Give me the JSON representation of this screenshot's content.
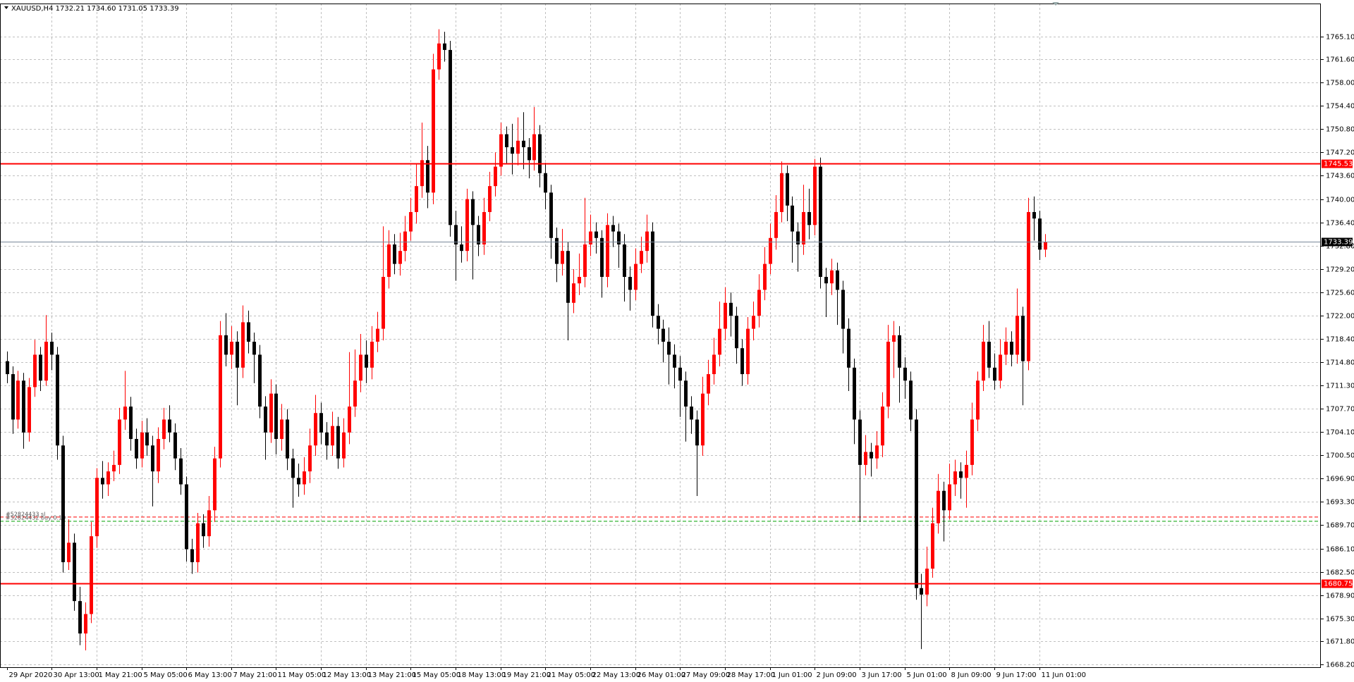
{
  "chart_data": {
    "type": "candlestick",
    "header": "XAUUSD,H4  1732.21 1734.60 1731.05 1733.39",
    "up_color": "#ff0000",
    "down_color": "#000000",
    "grid": true,
    "ylim": [
      1667.8,
      1770.16
    ],
    "xlim": [
      -1.2,
      234.2
    ],
    "yticks": [
      {
        "value": 1765.1,
        "label": "1765.10"
      },
      {
        "value": 1761.6,
        "label": "1761.60"
      },
      {
        "value": 1758,
        "label": "1758.00"
      },
      {
        "value": 1754.4,
        "label": "1754.40"
      },
      {
        "value": 1750.8,
        "label": "1750.80"
      },
      {
        "value": 1747.2,
        "label": "1747.20"
      },
      {
        "value": 1743.6,
        "label": "1743.60"
      },
      {
        "value": 1740,
        "label": "1740.00"
      },
      {
        "value": 1736.4,
        "label": "1736.40"
      },
      {
        "value": 1732.8,
        "label": "1732.80"
      },
      {
        "value": 1729.2,
        "label": "1729.20"
      },
      {
        "value": 1725.6,
        "label": "1725.60"
      },
      {
        "value": 1722,
        "label": "1722.00"
      },
      {
        "value": 1718.4,
        "label": "1718.40"
      },
      {
        "value": 1714.8,
        "label": "1714.80"
      },
      {
        "value": 1711.3,
        "label": "1711.30"
      },
      {
        "value": 1707.7,
        "label": "1707.70"
      },
      {
        "value": 1704.1,
        "label": "1704.10"
      },
      {
        "value": 1700.5,
        "label": "1700.50"
      },
      {
        "value": 1696.9,
        "label": "1696.90"
      },
      {
        "value": 1693.3,
        "label": "1693.30"
      },
      {
        "value": 1689.7,
        "label": "1689.70"
      },
      {
        "value": 1686.1,
        "label": "1686.10"
      },
      {
        "value": 1682.5,
        "label": "1682.50"
      },
      {
        "value": 1678.9,
        "label": "1678.90"
      },
      {
        "value": 1675.3,
        "label": "1675.30"
      },
      {
        "value": 1671.8,
        "label": "1671.80"
      },
      {
        "value": 1668.2,
        "label": "1668.20"
      }
    ],
    "xticks": [
      {
        "value": 0,
        "label": "29 Apr 2020"
      },
      {
        "value": 8,
        "label": "30 Apr 13:00"
      },
      {
        "value": 16,
        "label": "1 May 21:00"
      },
      {
        "value": 24,
        "label": "5 May 05:00"
      },
      {
        "value": 32,
        "label": "6 May 13:00"
      },
      {
        "value": 40,
        "label": "7 May 21:00"
      },
      {
        "value": 48,
        "label": "11 May 05:00"
      },
      {
        "value": 56,
        "label": "12 May 13:00"
      },
      {
        "value": 64,
        "label": "13 May 21:00"
      },
      {
        "value": 72,
        "label": "15 May 05:00"
      },
      {
        "value": 80,
        "label": "18 May 13:00"
      },
      {
        "value": 88,
        "label": "19 May 21:00"
      },
      {
        "value": 96,
        "label": "21 May 05:00"
      },
      {
        "value": 104,
        "label": "22 May 13:00"
      },
      {
        "value": 112,
        "label": "26 May 01:00"
      },
      {
        "value": 120,
        "label": "27 May 09:00"
      },
      {
        "value": 128,
        "label": "28 May 17:00"
      },
      {
        "value": 136,
        "label": "1 Jun 01:00"
      },
      {
        "value": 144,
        "label": "2 Jun 09:00"
      },
      {
        "value": 152,
        "label": "3 Jun 17:00"
      },
      {
        "value": 160,
        "label": "5 Jun 01:00"
      },
      {
        "value": 168,
        "label": "8 Jun 09:00"
      },
      {
        "value": 176,
        "label": "9 Jun 17:00"
      },
      {
        "value": 184,
        "label": "11 Jun 01:00"
      }
    ],
    "levels": [
      {
        "value": 1745.53,
        "color": "#ff0000"
      },
      {
        "value": 1680.75,
        "color": "#ff0000"
      }
    ],
    "bid": {
      "value": 1733.39,
      "color": "#778899"
    },
    "orders": [
      {
        "label": "#52824433 sl",
        "value": 1690.96,
        "color": "#ff0000"
      },
      {
        "label": "#52824432 buy 0.10",
        "value": 1690.3,
        "color": "#00a000"
      }
    ],
    "candles": [
      [
        1715,
        1716.5,
        1711.6,
        1713
      ],
      [
        1713,
        1714.2,
        1703.8,
        1706
      ],
      [
        1706,
        1713.5,
        1704.6,
        1712
      ],
      [
        1712,
        1713.2,
        1701.5,
        1704
      ],
      [
        1704,
        1712.4,
        1702.6,
        1711
      ],
      [
        1711,
        1718.3,
        1709.5,
        1716
      ],
      [
        1716,
        1717.2,
        1710.4,
        1712
      ],
      [
        1712,
        1722.1,
        1711.2,
        1718
      ],
      [
        1718,
        1719.4,
        1713.6,
        1716
      ],
      [
        1716,
        1717.2,
        1699.8,
        1702
      ],
      [
        1702,
        1703.5,
        1682.4,
        1684
      ],
      [
        1684,
        1690.6,
        1682.8,
        1687
      ],
      [
        1687,
        1688.4,
        1676.5,
        1678
      ],
      [
        1678,
        1680.2,
        1671.2,
        1673
      ],
      [
        1673,
        1677.8,
        1670.4,
        1676
      ],
      [
        1676,
        1690.2,
        1674.6,
        1688
      ],
      [
        1688,
        1698.5,
        1686.2,
        1697
      ],
      [
        1697,
        1699.6,
        1693.8,
        1696
      ],
      [
        1696,
        1699.4,
        1694.2,
        1698
      ],
      [
        1698,
        1701.2,
        1696.5,
        1699
      ],
      [
        1699,
        1707.8,
        1697.6,
        1706
      ],
      [
        1706,
        1713.5,
        1704.4,
        1708
      ],
      [
        1708,
        1709.5,
        1701.2,
        1703
      ],
      [
        1703,
        1704.6,
        1698.4,
        1700
      ],
      [
        1700,
        1705.8,
        1698.6,
        1704
      ],
      [
        1704,
        1706.2,
        1700.4,
        1702
      ],
      [
        1702,
        1703.5,
        1692.6,
        1698
      ],
      [
        1698,
        1704.8,
        1696.2,
        1703
      ],
      [
        1703,
        1707.8,
        1701.4,
        1706
      ],
      [
        1706,
        1708.2,
        1702.5,
        1704
      ],
      [
        1704,
        1705.4,
        1698.2,
        1700
      ],
      [
        1700,
        1701.6,
        1694.4,
        1696
      ],
      [
        1696,
        1697.2,
        1684.1,
        1686
      ],
      [
        1686,
        1687.6,
        1682.2,
        1684
      ],
      [
        1684,
        1691.6,
        1682.4,
        1690
      ],
      [
        1690,
        1691.4,
        1686.2,
        1688
      ],
      [
        1688,
        1694.2,
        1686.4,
        1692
      ],
      [
        1692,
        1701.8,
        1690.2,
        1700
      ],
      [
        1700,
        1721.2,
        1698.6,
        1719
      ],
      [
        1719,
        1722.4,
        1714.2,
        1716
      ],
      [
        1716,
        1720.4,
        1713.8,
        1718
      ],
      [
        1718,
        1719.6,
        1708.2,
        1714
      ],
      [
        1714,
        1723.6,
        1712.4,
        1721
      ],
      [
        1721,
        1722.8,
        1716.2,
        1718
      ],
      [
        1718,
        1719.4,
        1711.6,
        1716
      ],
      [
        1716,
        1717.5,
        1706.2,
        1708
      ],
      [
        1708,
        1709.6,
        1699.8,
        1704
      ],
      [
        1704,
        1712.2,
        1702.4,
        1710
      ],
      [
        1710,
        1711.4,
        1700.6,
        1703
      ],
      [
        1703,
        1708.4,
        1701.2,
        1706
      ],
      [
        1706,
        1707.6,
        1698.2,
        1700
      ],
      [
        1700,
        1701.5,
        1692.4,
        1697
      ],
      [
        1697,
        1699.2,
        1694.1,
        1696
      ],
      [
        1696,
        1700.2,
        1694.4,
        1698
      ],
      [
        1698,
        1704.6,
        1696.2,
        1702
      ],
      [
        1702,
        1709.8,
        1700.4,
        1707
      ],
      [
        1707,
        1708.6,
        1702.2,
        1704
      ],
      [
        1704,
        1705.6,
        1699.8,
        1702
      ],
      [
        1702,
        1707.2,
        1700.4,
        1705
      ],
      [
        1705,
        1706.4,
        1698.4,
        1700
      ],
      [
        1700,
        1706.2,
        1698.6,
        1704
      ],
      [
        1704,
        1716.4,
        1702.2,
        1708
      ],
      [
        1708,
        1716.8,
        1706.4,
        1712
      ],
      [
        1712,
        1719.2,
        1710.2,
        1716
      ],
      [
        1716,
        1718.2,
        1711.6,
        1714
      ],
      [
        1714,
        1720.4,
        1712.2,
        1718
      ],
      [
        1718,
        1722.6,
        1716.4,
        1720
      ],
      [
        1720,
        1735.8,
        1718.2,
        1728
      ],
      [
        1728,
        1735.2,
        1726.2,
        1733
      ],
      [
        1733,
        1734.6,
        1728.4,
        1730
      ],
      [
        1730,
        1734.8,
        1728.2,
        1732
      ],
      [
        1732,
        1737.4,
        1730.4,
        1735
      ],
      [
        1735,
        1740.2,
        1733.6,
        1738
      ],
      [
        1738,
        1745.4,
        1736.2,
        1742
      ],
      [
        1742,
        1751.8,
        1740.2,
        1746
      ],
      [
        1746,
        1748.2,
        1738.6,
        1741
      ],
      [
        1741,
        1762.4,
        1739.2,
        1760
      ],
      [
        1760,
        1766.2,
        1758.4,
        1764
      ],
      [
        1764,
        1765.8,
        1761.2,
        1763
      ],
      [
        1763,
        1764.4,
        1734.2,
        1736
      ],
      [
        1736,
        1738.2,
        1727.4,
        1733
      ],
      [
        1733,
        1735.8,
        1730.2,
        1732
      ],
      [
        1732,
        1741.6,
        1730.4,
        1740
      ],
      [
        1740,
        1741.2,
        1727.6,
        1736
      ],
      [
        1736,
        1737.4,
        1731.2,
        1733
      ],
      [
        1733,
        1740.2,
        1731.4,
        1738
      ],
      [
        1738,
        1744.2,
        1736.6,
        1742
      ],
      [
        1742,
        1747.2,
        1740.4,
        1745
      ],
      [
        1745,
        1751.8,
        1743.6,
        1750
      ],
      [
        1750,
        1751.2,
        1745.4,
        1748
      ],
      [
        1748,
        1751.6,
        1743.8,
        1747
      ],
      [
        1747,
        1752.6,
        1745.2,
        1749
      ],
      [
        1749,
        1753.4,
        1744.6,
        1748
      ],
      [
        1748,
        1749.4,
        1743.2,
        1746
      ],
      [
        1746,
        1754.2,
        1744.4,
        1750
      ],
      [
        1750,
        1751.4,
        1741.8,
        1744
      ],
      [
        1744,
        1745.6,
        1738.4,
        1741
      ],
      [
        1741,
        1742.2,
        1730.8,
        1734
      ],
      [
        1734,
        1735.6,
        1727.2,
        1730
      ],
      [
        1730,
        1735.4,
        1728.2,
        1732
      ],
      [
        1732,
        1733.4,
        1718.2,
        1724
      ],
      [
        1724,
        1729.2,
        1722.4,
        1727
      ],
      [
        1727,
        1731.6,
        1725.2,
        1728
      ],
      [
        1728,
        1740.2,
        1726.4,
        1733
      ],
      [
        1733,
        1737.6,
        1731.2,
        1735
      ],
      [
        1735,
        1736.4,
        1731.6,
        1734
      ],
      [
        1734,
        1735.2,
        1724.8,
        1728
      ],
      [
        1728,
        1737.8,
        1726.4,
        1736
      ],
      [
        1736,
        1737.4,
        1732.6,
        1735
      ],
      [
        1735,
        1736.2,
        1729.4,
        1733
      ],
      [
        1733,
        1734.6,
        1724.2,
        1728
      ],
      [
        1728,
        1729.6,
        1722.8,
        1726
      ],
      [
        1726,
        1732.4,
        1724.4,
        1730
      ],
      [
        1730,
        1734.2,
        1728.6,
        1732
      ],
      [
        1732,
        1737.6,
        1730.2,
        1735
      ],
      [
        1735,
        1736.4,
        1720.2,
        1722
      ],
      [
        1722,
        1723.8,
        1717.6,
        1720
      ],
      [
        1720,
        1721.4,
        1714.8,
        1718
      ],
      [
        1718,
        1720.2,
        1711.4,
        1716
      ],
      [
        1716,
        1717.6,
        1710.8,
        1714
      ],
      [
        1714,
        1715.8,
        1706.4,
        1712
      ],
      [
        1712,
        1713.4,
        1702.6,
        1708
      ],
      [
        1708,
        1709.6,
        1703.8,
        1706
      ],
      [
        1706,
        1707.4,
        1694.2,
        1702
      ],
      [
        1702,
        1712.6,
        1700.4,
        1710
      ],
      [
        1710,
        1715.2,
        1708.2,
        1713
      ],
      [
        1713,
        1718.6,
        1711.4,
        1716
      ],
      [
        1716,
        1724.2,
        1714.2,
        1720
      ],
      [
        1720,
        1726.4,
        1718.2,
        1724
      ],
      [
        1724,
        1725.6,
        1718.8,
        1722
      ],
      [
        1722,
        1723.4,
        1714.6,
        1717
      ],
      [
        1717,
        1718.4,
        1711.2,
        1713
      ],
      [
        1713,
        1721.8,
        1711.4,
        1720
      ],
      [
        1720,
        1724.2,
        1718.2,
        1722
      ],
      [
        1722,
        1728.4,
        1720.2,
        1726
      ],
      [
        1726,
        1732.6,
        1724.4,
        1730
      ],
      [
        1730,
        1736.2,
        1728.4,
        1734
      ],
      [
        1734,
        1740.6,
        1732.2,
        1738
      ],
      [
        1738,
        1745.8,
        1736.4,
        1744
      ],
      [
        1744,
        1745.2,
        1736.6,
        1739
      ],
      [
        1739,
        1740.4,
        1730.2,
        1735
      ],
      [
        1735,
        1736.4,
        1728.8,
        1733
      ],
      [
        1733,
        1742.2,
        1731.4,
        1738
      ],
      [
        1738,
        1741.6,
        1733.8,
        1736
      ],
      [
        1736,
        1746.2,
        1734.4,
        1745
      ],
      [
        1745,
        1746.4,
        1726.2,
        1728
      ],
      [
        1728,
        1729.4,
        1721.8,
        1727
      ],
      [
        1727,
        1730.8,
        1725.2,
        1729
      ],
      [
        1729,
        1730.2,
        1720.6,
        1726
      ],
      [
        1726,
        1727.4,
        1716.2,
        1720
      ],
      [
        1720,
        1721.6,
        1710.4,
        1714
      ],
      [
        1714,
        1715.4,
        1702.2,
        1706
      ],
      [
        1706,
        1707.4,
        1690.2,
        1699
      ],
      [
        1699,
        1703.6,
        1697.4,
        1701
      ],
      [
        1701,
        1702.4,
        1697.2,
        1700
      ],
      [
        1700,
        1704.2,
        1698.4,
        1702
      ],
      [
        1702,
        1710.2,
        1700.2,
        1708
      ],
      [
        1708,
        1720.6,
        1706.2,
        1718
      ],
      [
        1718,
        1721.2,
        1712.4,
        1719
      ],
      [
        1719,
        1720.4,
        1708.6,
        1714
      ],
      [
        1714,
        1715.6,
        1709.2,
        1712
      ],
      [
        1712,
        1713.4,
        1704.2,
        1706
      ],
      [
        1706,
        1707.6,
        1678.2,
        1680
      ],
      [
        1680,
        1682.2,
        1670.6,
        1679
      ],
      [
        1679,
        1686.4,
        1677.2,
        1683
      ],
      [
        1683,
        1692.4,
        1681.6,
        1690
      ],
      [
        1690,
        1697.6,
        1688.4,
        1695
      ],
      [
        1695,
        1696.4,
        1687.2,
        1692
      ],
      [
        1692,
        1699.2,
        1690.6,
        1696
      ],
      [
        1696,
        1699.8,
        1694.2,
        1698
      ],
      [
        1698,
        1699.4,
        1693.8,
        1697
      ],
      [
        1697,
        1701.2,
        1692.4,
        1699
      ],
      [
        1699,
        1708.6,
        1697.4,
        1706
      ],
      [
        1706,
        1713.4,
        1704.2,
        1712
      ],
      [
        1712,
        1720.6,
        1710.4,
        1718
      ],
      [
        1718,
        1721.2,
        1712.4,
        1714
      ],
      [
        1714,
        1716.2,
        1710.6,
        1712
      ],
      [
        1712,
        1718.4,
        1710.8,
        1716
      ],
      [
        1716,
        1720.2,
        1714.4,
        1718
      ],
      [
        1718,
        1719.6,
        1714.2,
        1716
      ],
      [
        1716,
        1726.2,
        1714.6,
        1722
      ],
      [
        1722,
        1723.4,
        1708.2,
        1715
      ],
      [
        1715,
        1740.2,
        1713.6,
        1738
      ],
      [
        1738,
        1740.4,
        1733.6,
        1737
      ],
      [
        1737,
        1738.2,
        1730.6,
        1732.2
      ],
      [
        1732.21,
        1734.6,
        1731.05,
        1733.39
      ]
    ]
  }
}
